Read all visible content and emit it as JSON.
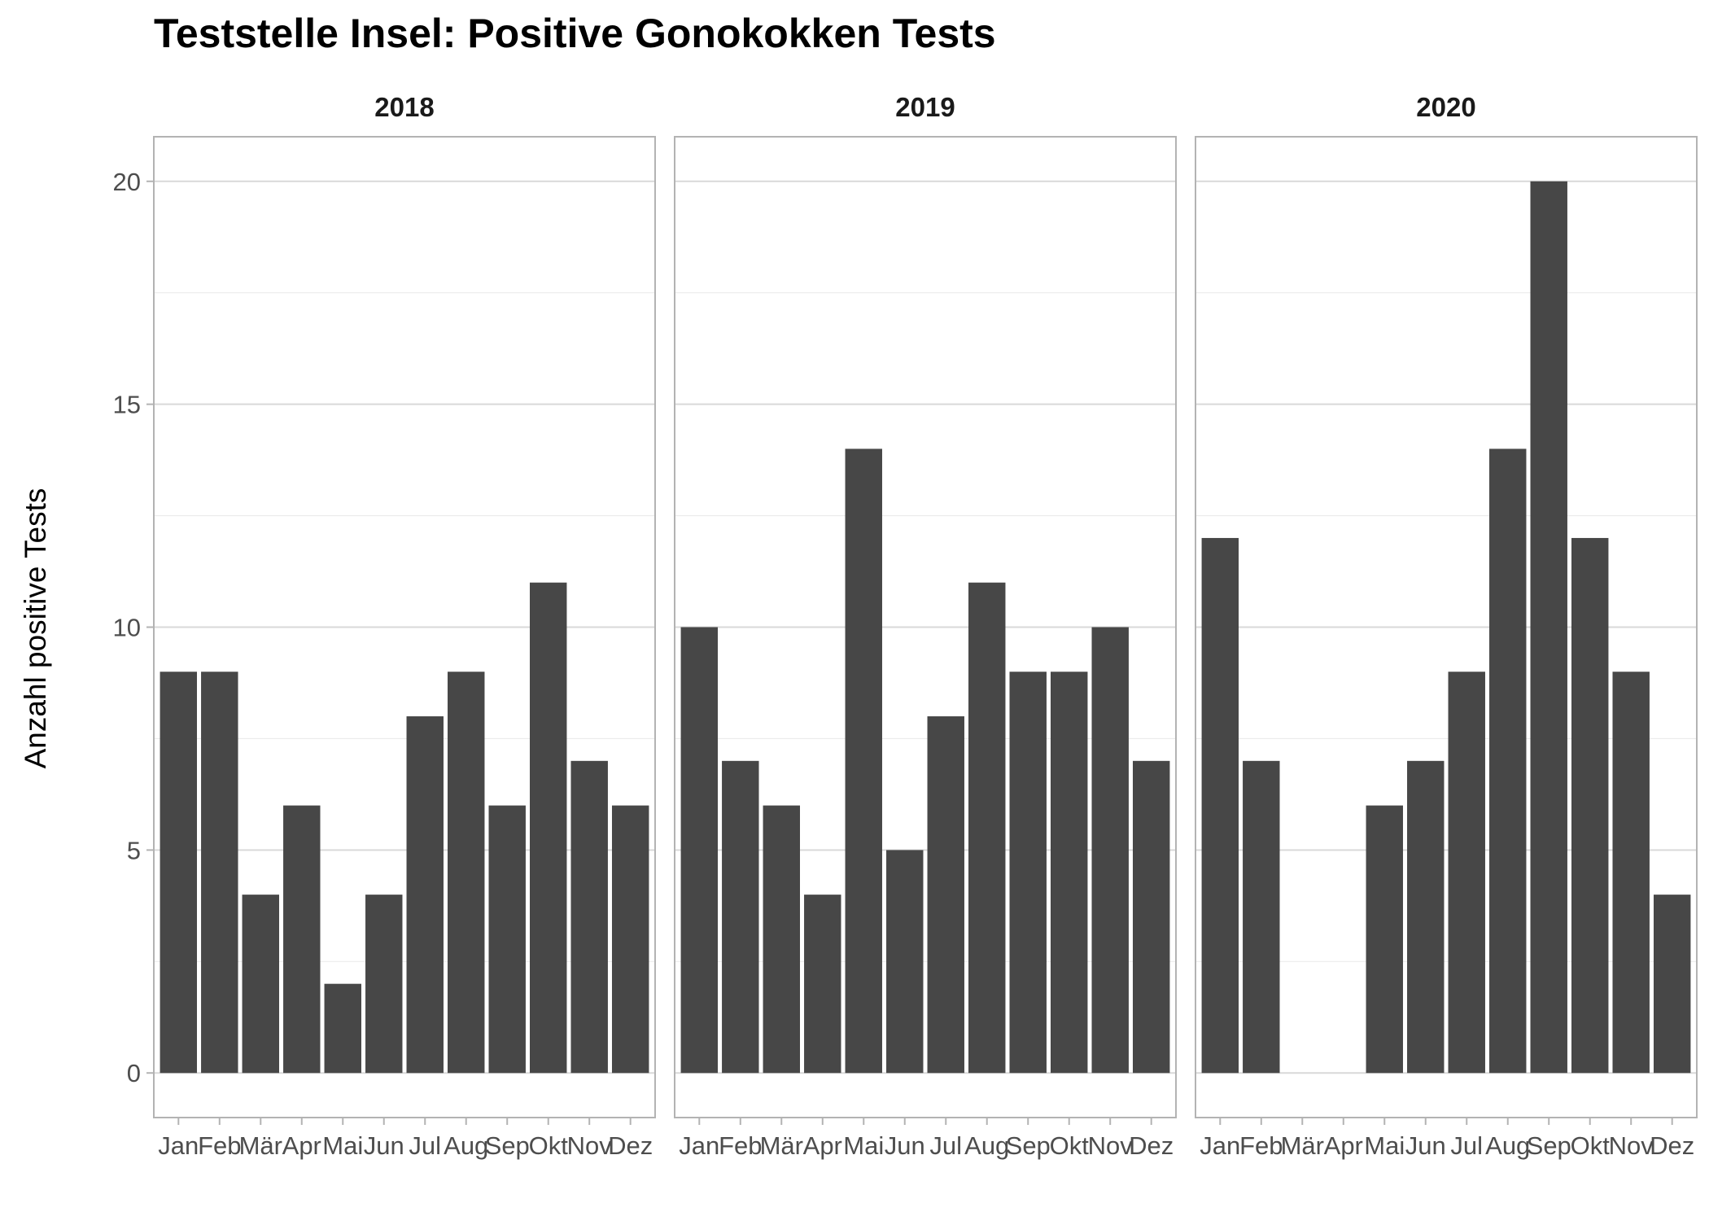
{
  "chart_data": {
    "type": "bar",
    "title": "Teststelle Insel: Positive Gonokokken Tests",
    "xlabel": "",
    "ylabel": "Anzahl positive Tests",
    "ylim": [
      -1,
      21
    ],
    "yticks": [
      0,
      5,
      10,
      15,
      20
    ],
    "grid": true,
    "categories": [
      "Jan",
      "Feb",
      "Mär",
      "Apr",
      "Mai",
      "Jun",
      "Jul",
      "Aug",
      "Sep",
      "Okt",
      "Nov",
      "Dez"
    ],
    "bar_color": "#474747",
    "panels": [
      {
        "name": "2018",
        "values": [
          9,
          9,
          4,
          6,
          2,
          4,
          8,
          9,
          6,
          11,
          7,
          6
        ]
      },
      {
        "name": "2019",
        "values": [
          10,
          7,
          6,
          4,
          14,
          5,
          8,
          11,
          9,
          9,
          10,
          7
        ]
      },
      {
        "name": "2020",
        "values": [
          12,
          7,
          0,
          0,
          6,
          7,
          9,
          14,
          20,
          12,
          9,
          4
        ]
      }
    ]
  }
}
